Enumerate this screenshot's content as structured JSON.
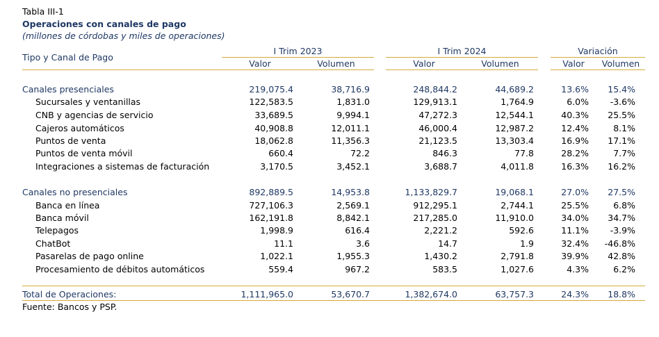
{
  "header": {
    "table_label": "Tabla III-1",
    "title": "Operaciones con canales de pago",
    "subtitle": "(millones de córdobas y miles de operaciones)",
    "stub_label": "Tipo y Canal de Pago",
    "groups": [
      "I Trim 2023",
      "I Trim 2024",
      "Variación"
    ],
    "subheaders": [
      "Valor",
      "Volumen",
      "Valor",
      "Volumen",
      "Valor",
      "Volumen"
    ]
  },
  "sections": [
    {
      "label": "Canales presenciales",
      "values": [
        "219,075.4",
        "38,716.9",
        "248,844.2",
        "44,689.2",
        "13.6%",
        "15.4%"
      ],
      "rows": [
        {
          "label": "Sucursales y ventanillas",
          "values": [
            "122,583.5",
            "1,831.0",
            "129,913.1",
            "1,764.9",
            "6.0%",
            "-3.6%"
          ]
        },
        {
          "label": "CNB y agencias de servicio",
          "values": [
            "33,689.5",
            "9,994.1",
            "47,272.3",
            "12,544.1",
            "40.3%",
            "25.5%"
          ]
        },
        {
          "label": "Cajeros automáticos",
          "values": [
            "40,908.8",
            "12,011.1",
            "46,000.4",
            "12,987.2",
            "12.4%",
            "8.1%"
          ]
        },
        {
          "label": "Puntos de venta",
          "values": [
            "18,062.8",
            "11,356.3",
            "21,123.5",
            "13,303.4",
            "16.9%",
            "17.1%"
          ]
        },
        {
          "label": "Puntos de venta móvil",
          "values": [
            "660.4",
            "72.2",
            "846.3",
            "77.8",
            "28.2%",
            "7.7%"
          ]
        },
        {
          "label": "Integraciones a sistemas de facturación",
          "values": [
            "3,170.5",
            "3,452.1",
            "3,688.7",
            "4,011.8",
            "16.3%",
            "16.2%"
          ]
        }
      ]
    },
    {
      "label": "Canales no presenciales",
      "values": [
        "892,889.5",
        "14,953.8",
        "1,133,829.7",
        "19,068.1",
        "27.0%",
        "27.5%"
      ],
      "rows": [
        {
          "label": "Banca en línea",
          "values": [
            "727,106.3",
            "2,569.1",
            "912,295.1",
            "2,744.1",
            "25.5%",
            "6.8%"
          ]
        },
        {
          "label": "Banca móvil",
          "values": [
            "162,191.8",
            "8,842.1",
            "217,285.0",
            "11,910.0",
            "34.0%",
            "34.7%"
          ]
        },
        {
          "label": "Telepagos",
          "values": [
            "1,998.9",
            "616.4",
            "2,221.2",
            "592.6",
            "11.1%",
            "-3.9%"
          ]
        },
        {
          "label": "ChatBot",
          "values": [
            "11.1",
            "3.6",
            "14.7",
            "1.9",
            "32.4%",
            "-46.8%"
          ]
        },
        {
          "label": "Pasarelas de pago online",
          "values": [
            "1,022.1",
            "1,955.3",
            "1,430.2",
            "2,791.8",
            "39.9%",
            "42.8%"
          ]
        },
        {
          "label": "Procesamiento de débitos automáticos",
          "values": [
            "559.4",
            "967.2",
            "583.5",
            "1,027.6",
            "4.3%",
            "6.2%"
          ]
        }
      ]
    }
  ],
  "total": {
    "label": "Total de Operaciones:",
    "values": [
      "1,111,965.0",
      "53,670.7",
      "1,382,674.0",
      "63,757.3",
      "24.3%",
      "18.8%"
    ]
  },
  "source": "Fuente: Bancos y PSP.",
  "colors": {
    "accent_line": "#d4aa3a",
    "heading_text": "#1f3864"
  }
}
